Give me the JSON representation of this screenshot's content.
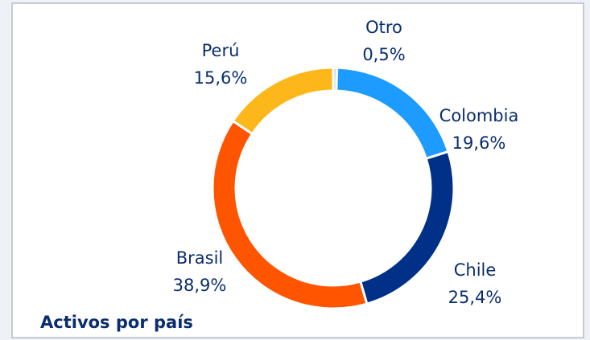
{
  "chart_data": {
    "type": "pie",
    "title": "Activos por país",
    "categories": [
      "Otro",
      "Colombia",
      "Chile",
      "Brasil",
      "Perú"
    ],
    "values": [
      0.5,
      19.6,
      25.4,
      38.9,
      15.6
    ],
    "value_labels": [
      "0,5%",
      "19,6%",
      "25,4%",
      "38,9%",
      "15,6%"
    ],
    "colors": [
      "#c8d3e0",
      "#1e9bff",
      "#003087",
      "#ff5500",
      "#fdb71a"
    ]
  }
}
